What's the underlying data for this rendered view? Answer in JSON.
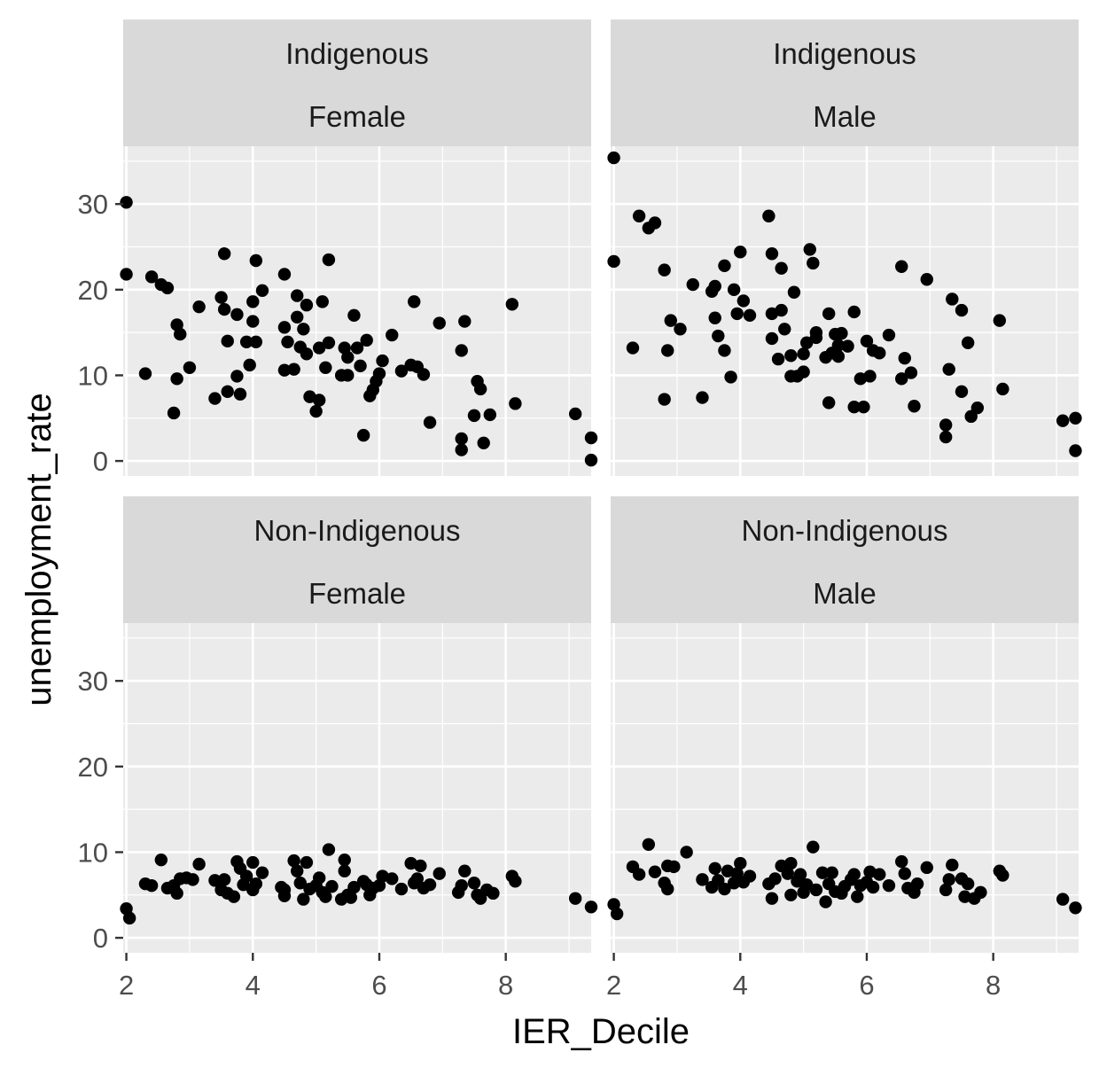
{
  "chart_data": {
    "type": "scatter",
    "xlabel": "IER_Decile",
    "ylabel": "unemployment_rate",
    "xlim": [
      1.95,
      9.35
    ],
    "ylim": [
      -1.75,
      36.75
    ],
    "x_ticks": [
      2,
      4,
      6,
      8
    ],
    "y_ticks": [
      0,
      10,
      20,
      30
    ],
    "grid": true,
    "point_color": "#000000",
    "panel_background": "#ebebeb",
    "strip_background": "#d9d9d9",
    "panels": [
      {
        "strip": [
          "Indigenous",
          "Female"
        ],
        "points": [
          [
            2.0,
            30.2
          ],
          [
            2.0,
            21.8
          ],
          [
            2.3,
            10.2
          ],
          [
            2.4,
            21.5
          ],
          [
            2.55,
            20.6
          ],
          [
            2.65,
            20.2
          ],
          [
            2.8,
            15.9
          ],
          [
            2.8,
            9.6
          ],
          [
            2.75,
            5.6
          ],
          [
            2.85,
            14.8
          ],
          [
            3.0,
            10.9
          ],
          [
            3.15,
            18.0
          ],
          [
            3.4,
            7.3
          ],
          [
            3.5,
            19.1
          ],
          [
            3.55,
            17.7
          ],
          [
            3.55,
            24.2
          ],
          [
            3.6,
            14.0
          ],
          [
            3.6,
            8.1
          ],
          [
            3.75,
            17.1
          ],
          [
            3.75,
            9.9
          ],
          [
            3.8,
            7.8
          ],
          [
            3.9,
            13.9
          ],
          [
            3.95,
            11.2
          ],
          [
            4.0,
            16.3
          ],
          [
            4.0,
            18.6
          ],
          [
            4.05,
            23.4
          ],
          [
            4.05,
            13.9
          ],
          [
            4.15,
            19.9
          ],
          [
            4.5,
            21.8
          ],
          [
            4.5,
            15.6
          ],
          [
            4.5,
            10.6
          ],
          [
            4.55,
            13.9
          ],
          [
            4.65,
            10.7
          ],
          [
            4.7,
            19.3
          ],
          [
            4.7,
            16.8
          ],
          [
            4.75,
            13.3
          ],
          [
            4.8,
            15.4
          ],
          [
            4.85,
            12.5
          ],
          [
            4.85,
            18.2
          ],
          [
            4.9,
            7.5
          ],
          [
            5.0,
            5.8
          ],
          [
            5.05,
            7.1
          ],
          [
            5.05,
            13.2
          ],
          [
            5.1,
            18.6
          ],
          [
            5.15,
            10.9
          ],
          [
            5.2,
            23.5
          ],
          [
            5.2,
            13.8
          ],
          [
            5.4,
            10.0
          ],
          [
            5.45,
            13.2
          ],
          [
            5.5,
            12.1
          ],
          [
            5.5,
            10.0
          ],
          [
            5.6,
            17.0
          ],
          [
            5.65,
            13.2
          ],
          [
            5.7,
            11.1
          ],
          [
            5.75,
            3.0
          ],
          [
            5.8,
            14.1
          ],
          [
            5.85,
            7.6
          ],
          [
            5.9,
            8.3
          ],
          [
            5.95,
            9.3
          ],
          [
            6.0,
            10.2
          ],
          [
            6.05,
            11.7
          ],
          [
            6.2,
            14.7
          ],
          [
            6.35,
            10.5
          ],
          [
            6.5,
            11.2
          ],
          [
            6.55,
            18.6
          ],
          [
            6.6,
            11.0
          ],
          [
            6.7,
            10.1
          ],
          [
            6.8,
            4.5
          ],
          [
            6.95,
            16.1
          ],
          [
            7.3,
            12.9
          ],
          [
            7.3,
            1.3
          ],
          [
            7.35,
            16.3
          ],
          [
            7.3,
            2.6
          ],
          [
            7.5,
            5.3
          ],
          [
            7.55,
            9.3
          ],
          [
            7.6,
            8.4
          ],
          [
            7.65,
            2.1
          ],
          [
            7.75,
            5.4
          ],
          [
            8.1,
            18.3
          ],
          [
            8.15,
            6.7
          ],
          [
            9.1,
            5.5
          ],
          [
            9.35,
            2.7
          ],
          [
            9.35,
            0.1
          ]
        ]
      },
      {
        "strip": [
          "Indigenous",
          "Male"
        ],
        "points": [
          [
            2.0,
            35.4
          ],
          [
            2.0,
            23.3
          ],
          [
            2.3,
            13.2
          ],
          [
            2.4,
            28.6
          ],
          [
            2.55,
            27.2
          ],
          [
            2.65,
            27.8
          ],
          [
            2.8,
            22.3
          ],
          [
            2.8,
            7.2
          ],
          [
            2.85,
            12.9
          ],
          [
            2.9,
            16.4
          ],
          [
            3.05,
            15.4
          ],
          [
            3.25,
            20.6
          ],
          [
            3.4,
            7.4
          ],
          [
            3.55,
            19.8
          ],
          [
            3.6,
            20.4
          ],
          [
            3.6,
            16.7
          ],
          [
            3.65,
            14.6
          ],
          [
            3.75,
            22.8
          ],
          [
            3.75,
            12.9
          ],
          [
            3.85,
            9.8
          ],
          [
            3.9,
            20.0
          ],
          [
            3.95,
            17.2
          ],
          [
            4.0,
            24.4
          ],
          [
            4.05,
            18.7
          ],
          [
            4.15,
            17.0
          ],
          [
            4.45,
            28.6
          ],
          [
            4.5,
            24.2
          ],
          [
            4.5,
            17.2
          ],
          [
            4.5,
            14.3
          ],
          [
            4.6,
            11.9
          ],
          [
            4.65,
            17.6
          ],
          [
            4.65,
            22.5
          ],
          [
            4.7,
            15.4
          ],
          [
            4.8,
            9.9
          ],
          [
            4.8,
            12.3
          ],
          [
            4.85,
            19.7
          ],
          [
            4.9,
            9.9
          ],
          [
            5.0,
            10.4
          ],
          [
            5.0,
            12.5
          ],
          [
            5.05,
            13.8
          ],
          [
            5.1,
            24.7
          ],
          [
            5.15,
            23.1
          ],
          [
            5.2,
            14.4
          ],
          [
            5.2,
            15.0
          ],
          [
            5.35,
            12.1
          ],
          [
            5.4,
            6.8
          ],
          [
            5.4,
            17.2
          ],
          [
            5.45,
            12.6
          ],
          [
            5.5,
            14.8
          ],
          [
            5.55,
            13.5
          ],
          [
            5.55,
            12.2
          ],
          [
            5.6,
            14.9
          ],
          [
            5.7,
            13.4
          ],
          [
            5.8,
            17.4
          ],
          [
            5.8,
            6.3
          ],
          [
            5.9,
            9.6
          ],
          [
            5.95,
            6.3
          ],
          [
            6.0,
            14.0
          ],
          [
            6.05,
            9.9
          ],
          [
            6.1,
            12.9
          ],
          [
            6.2,
            12.6
          ],
          [
            6.35,
            14.7
          ],
          [
            6.55,
            22.7
          ],
          [
            6.55,
            9.6
          ],
          [
            6.6,
            12.0
          ],
          [
            6.7,
            10.3
          ],
          [
            6.75,
            6.4
          ],
          [
            6.95,
            21.2
          ],
          [
            7.25,
            4.2
          ],
          [
            7.25,
            2.8
          ],
          [
            7.3,
            10.7
          ],
          [
            7.35,
            18.9
          ],
          [
            7.5,
            17.6
          ],
          [
            7.5,
            8.1
          ],
          [
            7.6,
            13.8
          ],
          [
            7.65,
            5.2
          ],
          [
            7.75,
            6.2
          ],
          [
            8.1,
            16.4
          ],
          [
            8.15,
            8.4
          ],
          [
            9.1,
            4.7
          ],
          [
            9.3,
            5.0
          ],
          [
            9.3,
            1.2
          ]
        ]
      },
      {
        "strip": [
          "Non-Indigenous",
          "Female"
        ],
        "points": [
          [
            2.0,
            3.4
          ],
          [
            2.05,
            2.3
          ],
          [
            2.3,
            6.3
          ],
          [
            2.4,
            6.1
          ],
          [
            2.55,
            9.1
          ],
          [
            2.65,
            5.8
          ],
          [
            2.75,
            6.1
          ],
          [
            2.8,
            5.2
          ],
          [
            2.85,
            6.9
          ],
          [
            2.95,
            7.0
          ],
          [
            3.05,
            6.8
          ],
          [
            3.15,
            8.6
          ],
          [
            3.4,
            6.7
          ],
          [
            3.5,
            5.6
          ],
          [
            3.55,
            6.8
          ],
          [
            3.6,
            5.2
          ],
          [
            3.7,
            4.8
          ],
          [
            3.75,
            8.9
          ],
          [
            3.8,
            8.1
          ],
          [
            3.85,
            6.2
          ],
          [
            3.9,
            7.2
          ],
          [
            4.0,
            5.6
          ],
          [
            4.0,
            8.8
          ],
          [
            4.05,
            6.3
          ],
          [
            4.15,
            7.6
          ],
          [
            4.45,
            5.9
          ],
          [
            4.5,
            4.9
          ],
          [
            4.5,
            5.6
          ],
          [
            4.65,
            9.0
          ],
          [
            4.7,
            7.8
          ],
          [
            4.75,
            6.4
          ],
          [
            4.8,
            4.5
          ],
          [
            4.85,
            8.8
          ],
          [
            4.9,
            5.7
          ],
          [
            5.0,
            6.1
          ],
          [
            5.05,
            7.0
          ],
          [
            5.1,
            5.3
          ],
          [
            5.15,
            4.8
          ],
          [
            5.2,
            10.3
          ],
          [
            5.25,
            6.0
          ],
          [
            5.4,
            4.5
          ],
          [
            5.45,
            7.8
          ],
          [
            5.45,
            9.1
          ],
          [
            5.5,
            5.0
          ],
          [
            5.55,
            4.7
          ],
          [
            5.6,
            5.9
          ],
          [
            5.75,
            6.6
          ],
          [
            5.8,
            6.2
          ],
          [
            5.85,
            5.0
          ],
          [
            5.9,
            5.8
          ],
          [
            6.0,
            6.1
          ],
          [
            6.05,
            7.2
          ],
          [
            6.2,
            6.9
          ],
          [
            6.35,
            5.7
          ],
          [
            6.5,
            8.7
          ],
          [
            6.55,
            6.4
          ],
          [
            6.6,
            6.9
          ],
          [
            6.65,
            8.4
          ],
          [
            6.7,
            5.8
          ],
          [
            6.8,
            6.2
          ],
          [
            6.95,
            7.5
          ],
          [
            7.25,
            5.3
          ],
          [
            7.3,
            6.1
          ],
          [
            7.35,
            7.8
          ],
          [
            7.5,
            6.4
          ],
          [
            7.55,
            5.0
          ],
          [
            7.6,
            4.6
          ],
          [
            7.7,
            5.6
          ],
          [
            7.8,
            5.2
          ],
          [
            8.1,
            7.2
          ],
          [
            8.15,
            6.6
          ],
          [
            9.1,
            4.6
          ],
          [
            9.35,
            3.6
          ]
        ]
      },
      {
        "strip": [
          "Non-Indigenous",
          "Male"
        ],
        "points": [
          [
            2.0,
            3.9
          ],
          [
            2.05,
            2.8
          ],
          [
            2.3,
            8.3
          ],
          [
            2.4,
            7.4
          ],
          [
            2.55,
            10.9
          ],
          [
            2.65,
            7.7
          ],
          [
            2.8,
            6.4
          ],
          [
            2.85,
            8.4
          ],
          [
            2.85,
            5.7
          ],
          [
            2.95,
            8.3
          ],
          [
            3.15,
            10.0
          ],
          [
            3.4,
            6.8
          ],
          [
            3.55,
            5.9
          ],
          [
            3.6,
            8.1
          ],
          [
            3.65,
            6.7
          ],
          [
            3.75,
            5.7
          ],
          [
            3.8,
            7.8
          ],
          [
            3.9,
            6.4
          ],
          [
            3.95,
            7.5
          ],
          [
            4.0,
            8.7
          ],
          [
            4.05,
            6.5
          ],
          [
            4.15,
            7.2
          ],
          [
            4.45,
            6.3
          ],
          [
            4.5,
            4.6
          ],
          [
            4.55,
            6.9
          ],
          [
            4.65,
            8.4
          ],
          [
            4.75,
            7.5
          ],
          [
            4.8,
            8.7
          ],
          [
            4.8,
            5.0
          ],
          [
            4.9,
            6.6
          ],
          [
            4.95,
            7.4
          ],
          [
            5.0,
            5.3
          ],
          [
            5.05,
            6.2
          ],
          [
            5.15,
            10.6
          ],
          [
            5.2,
            5.6
          ],
          [
            5.3,
            7.6
          ],
          [
            5.35,
            4.2
          ],
          [
            5.4,
            6.3
          ],
          [
            5.45,
            7.6
          ],
          [
            5.5,
            5.4
          ],
          [
            5.6,
            5.2
          ],
          [
            5.65,
            6.0
          ],
          [
            5.75,
            6.8
          ],
          [
            5.8,
            7.4
          ],
          [
            5.85,
            4.8
          ],
          [
            5.9,
            6.1
          ],
          [
            6.0,
            6.5
          ],
          [
            6.05,
            7.7
          ],
          [
            6.1,
            5.9
          ],
          [
            6.2,
            7.4
          ],
          [
            6.35,
            6.1
          ],
          [
            6.55,
            8.9
          ],
          [
            6.6,
            7.5
          ],
          [
            6.65,
            5.8
          ],
          [
            6.75,
            5.3
          ],
          [
            6.8,
            6.3
          ],
          [
            6.95,
            8.2
          ],
          [
            7.25,
            5.6
          ],
          [
            7.3,
            6.8
          ],
          [
            7.35,
            8.5
          ],
          [
            7.5,
            6.9
          ],
          [
            7.55,
            4.8
          ],
          [
            7.6,
            6.3
          ],
          [
            7.7,
            4.6
          ],
          [
            7.8,
            5.3
          ],
          [
            8.1,
            7.8
          ],
          [
            8.15,
            7.3
          ],
          [
            9.1,
            4.5
          ],
          [
            9.3,
            3.5
          ]
        ]
      }
    ]
  }
}
